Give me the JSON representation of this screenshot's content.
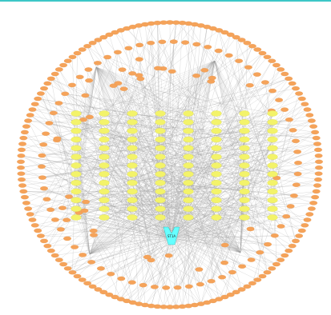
{
  "diagram": {
    "type": "network",
    "colors": {
      "target_node": "#f5a35a",
      "compound_node": "#f3f36a",
      "hub_node": "#66ffff",
      "edge": "#9a9a9a",
      "top_line": "#3cc7c7"
    },
    "hub": {
      "label": "ST1A"
    },
    "compound_grid": {
      "rows": 13,
      "cols": 8
    },
    "target_ring": {
      "outer_count": 150,
      "inner_count": 70,
      "scattered_count": 40
    }
  }
}
